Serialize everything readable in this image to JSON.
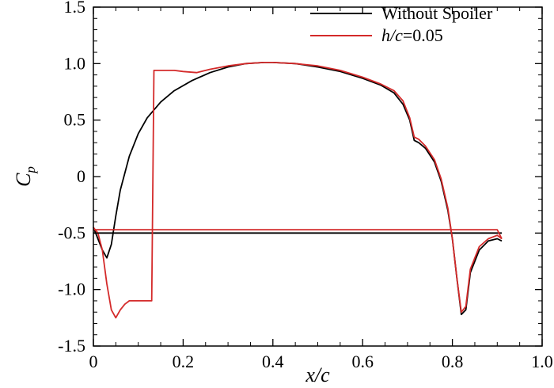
{
  "chart_data": {
    "type": "line",
    "xlabel": "x/c",
    "ylabel_main": "C",
    "ylabel_sub": "p",
    "xlim": [
      0,
      1.0
    ],
    "ylim": [
      -1.5,
      1.5
    ],
    "x_ticks": [
      0,
      0.2,
      0.4,
      0.6,
      0.8,
      1.0
    ],
    "x_tick_labels": [
      "0",
      "0.2",
      "0.4",
      "0.6",
      "0.8",
      "1.0"
    ],
    "y_ticks": [
      -1.5,
      -1.0,
      -0.5,
      0,
      0.5,
      1.0,
      1.5
    ],
    "y_tick_labels": [
      "-1.5",
      "-1.0",
      "-0.5",
      "0",
      "0.5",
      "1.0",
      "1.5"
    ],
    "grid": false,
    "legend_position": "top-right",
    "legend": [
      {
        "text": "Without Spoiler"
      },
      {
        "italic": "h/c",
        "text": "=0.05"
      }
    ],
    "series": [
      {
        "color": "#000000",
        "upper": [
          [
            0.0,
            -0.45
          ],
          [
            0.01,
            -0.55
          ],
          [
            0.02,
            -0.65
          ],
          [
            0.03,
            -0.72
          ],
          [
            0.04,
            -0.6
          ],
          [
            0.05,
            -0.35
          ],
          [
            0.06,
            -0.12
          ],
          [
            0.08,
            0.18
          ],
          [
            0.1,
            0.38
          ],
          [
            0.12,
            0.52
          ],
          [
            0.15,
            0.66
          ],
          [
            0.18,
            0.76
          ],
          [
            0.22,
            0.85
          ],
          [
            0.26,
            0.92
          ],
          [
            0.3,
            0.97
          ],
          [
            0.34,
            1.0
          ],
          [
            0.38,
            1.01
          ],
          [
            0.4,
            1.01
          ],
          [
            0.45,
            1.0
          ],
          [
            0.5,
            0.97
          ],
          [
            0.55,
            0.93
          ],
          [
            0.6,
            0.87
          ],
          [
            0.64,
            0.81
          ],
          [
            0.67,
            0.74
          ],
          [
            0.69,
            0.64
          ],
          [
            0.705,
            0.5
          ],
          [
            0.715,
            0.32
          ],
          [
            0.725,
            0.3
          ],
          [
            0.74,
            0.25
          ],
          [
            0.76,
            0.13
          ],
          [
            0.775,
            -0.04
          ],
          [
            0.79,
            -0.3
          ],
          [
            0.8,
            -0.55
          ],
          [
            0.81,
            -0.9
          ],
          [
            0.82,
            -1.22
          ],
          [
            0.83,
            -1.18
          ],
          [
            0.84,
            -0.85
          ],
          [
            0.86,
            -0.65
          ],
          [
            0.88,
            -0.57
          ],
          [
            0.9,
            -0.55
          ],
          [
            0.91,
            -0.57
          ]
        ],
        "lower": [
          [
            0.0,
            -0.5
          ],
          [
            0.91,
            -0.5
          ]
        ]
      },
      {
        "color": "#d42a2a",
        "upper": [
          [
            0.0,
            -0.45
          ],
          [
            0.01,
            -0.5
          ],
          [
            0.02,
            -0.65
          ],
          [
            0.03,
            -0.95
          ],
          [
            0.04,
            -1.18
          ],
          [
            0.05,
            -1.25
          ],
          [
            0.06,
            -1.18
          ],
          [
            0.07,
            -1.13
          ],
          [
            0.08,
            -1.1
          ],
          [
            0.1,
            -1.1
          ],
          [
            0.12,
            -1.1
          ],
          [
            0.13,
            -1.1
          ],
          [
            0.135,
            0.94
          ],
          [
            0.15,
            0.94
          ],
          [
            0.18,
            0.94
          ],
          [
            0.2,
            0.93
          ],
          [
            0.23,
            0.92
          ],
          [
            0.26,
            0.95
          ],
          [
            0.3,
            0.98
          ],
          [
            0.34,
            1.0
          ],
          [
            0.38,
            1.01
          ],
          [
            0.4,
            1.01
          ],
          [
            0.45,
            1.0
          ],
          [
            0.5,
            0.98
          ],
          [
            0.55,
            0.94
          ],
          [
            0.6,
            0.88
          ],
          [
            0.64,
            0.82
          ],
          [
            0.67,
            0.76
          ],
          [
            0.69,
            0.67
          ],
          [
            0.705,
            0.52
          ],
          [
            0.715,
            0.35
          ],
          [
            0.725,
            0.33
          ],
          [
            0.74,
            0.27
          ],
          [
            0.76,
            0.15
          ],
          [
            0.775,
            -0.02
          ],
          [
            0.79,
            -0.28
          ],
          [
            0.8,
            -0.55
          ],
          [
            0.81,
            -0.9
          ],
          [
            0.82,
            -1.2
          ],
          [
            0.83,
            -1.15
          ],
          [
            0.84,
            -0.82
          ],
          [
            0.86,
            -0.62
          ],
          [
            0.88,
            -0.55
          ],
          [
            0.9,
            -0.52
          ],
          [
            0.91,
            -0.55
          ]
        ],
        "lower": [
          [
            0.0,
            -0.47
          ],
          [
            0.9,
            -0.47
          ],
          [
            0.91,
            -0.55
          ]
        ]
      }
    ]
  }
}
